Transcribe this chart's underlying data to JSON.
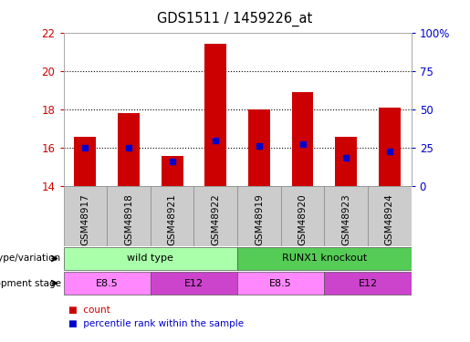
{
  "title": "GDS1511 / 1459226_at",
  "samples": [
    "GSM48917",
    "GSM48918",
    "GSM48921",
    "GSM48922",
    "GSM48919",
    "GSM48920",
    "GSM48923",
    "GSM48924"
  ],
  "count_values": [
    16.6,
    17.8,
    15.6,
    21.4,
    18.0,
    18.9,
    16.6,
    18.1
  ],
  "percentile_values": [
    16.0,
    16.0,
    15.3,
    16.4,
    16.1,
    16.2,
    15.5,
    15.8
  ],
  "ymin": 14,
  "ymax": 22,
  "yticks": [
    14,
    16,
    18,
    20,
    22
  ],
  "right_yticks": [
    0,
    25,
    50,
    75,
    100
  ],
  "bar_color": "#cc0000",
  "percentile_color": "#0000cc",
  "bar_width": 0.5,
  "genotype_groups": [
    {
      "label": "wild type",
      "start": 0,
      "end": 4,
      "color": "#aaffaa"
    },
    {
      "label": "RUNX1 knockout",
      "start": 4,
      "end": 8,
      "color": "#55cc55"
    }
  ],
  "stage_groups": [
    {
      "label": "E8.5",
      "start": 0,
      "end": 2,
      "color": "#ff88ff"
    },
    {
      "label": "E12",
      "start": 2,
      "end": 4,
      "color": "#cc44cc"
    },
    {
      "label": "E8.5",
      "start": 4,
      "end": 6,
      "color": "#ff88ff"
    },
    {
      "label": "E12",
      "start": 6,
      "end": 8,
      "color": "#cc44cc"
    }
  ],
  "sample_box_color": "#cccccc",
  "legend_count_label": "count",
  "legend_percentile_label": "percentile rank within the sample",
  "tick_color_left": "#cc0000",
  "tick_color_right": "#0000cc",
  "label_left_text": [
    "genotype/variation",
    "development stage"
  ],
  "dotted_lines": [
    16,
    18,
    20
  ]
}
